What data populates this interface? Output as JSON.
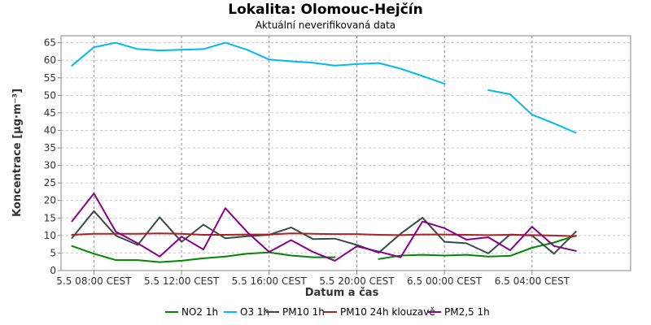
{
  "chart_data": {
    "type": "line",
    "title": "Lokalita: Olomouc-Hejčín",
    "subtitle": "Aktuální neverifikovaná data",
    "xlabel": "Datum a čas",
    "ylabel": "Koncentrace [µg·m⁻³]",
    "ylim": [
      0,
      67
    ],
    "yticks": [
      0,
      5,
      10,
      15,
      20,
      25,
      30,
      35,
      40,
      45,
      50,
      55,
      60,
      65
    ],
    "xlim": [
      -0.5,
      25.5
    ],
    "xticks": [
      {
        "pos": 1,
        "label": "5.5 08:00 CEST"
      },
      {
        "pos": 5,
        "label": "5.5 12:00 CEST"
      },
      {
        "pos": 9,
        "label": "5.5 16:00 CEST"
      },
      {
        "pos": 13,
        "label": "5.5 20:00 CEST"
      },
      {
        "pos": 17,
        "label": "6.5 00:00 CEST"
      },
      {
        "pos": 21,
        "label": "6.5 04:00 CEST"
      }
    ],
    "grid": true,
    "legend_position": "bottom",
    "x": [
      "5.5 07:00",
      "5.5 08:00",
      "5.5 09:00",
      "5.5 10:00",
      "5.5 11:00",
      "5.5 12:00",
      "5.5 13:00",
      "5.5 14:00",
      "5.5 15:00",
      "5.5 16:00",
      "5.5 17:00",
      "5.5 18:00",
      "5.5 19:00",
      "5.5 20:00",
      "5.5 21:00",
      "5.5 22:00",
      "5.5 23:00",
      "6.5 00:00",
      "6.5 01:00",
      "6.5 02:00",
      "6.5 03:00",
      "6.5 04:00",
      "6.5 05:00",
      "6.5 06:00"
    ],
    "series": [
      {
        "name": "NO2 1h",
        "color": "#008800",
        "values": [
          7,
          4.8,
          3,
          3,
          2.4,
          2.8,
          3.5,
          4,
          4.8,
          5.2,
          4.3,
          3.8,
          3.8,
          null,
          3.3,
          4.3,
          4.5,
          4.3,
          4.5,
          4,
          4.2,
          6.5,
          8,
          10
        ]
      },
      {
        "name": "O3 1h",
        "color": "#00bbee",
        "values": [
          58.5,
          63.7,
          65,
          63.2,
          62.8,
          63,
          63.2,
          65,
          63,
          60.2,
          59.7,
          59.3,
          58.5,
          58.9,
          59.2,
          57.6,
          55.5,
          53.3,
          null,
          51.5,
          50.3,
          44.5,
          42,
          39.3
        ]
      },
      {
        "name": "PM10 1h",
        "color": "#3a4a4a",
        "values": [
          9.3,
          17,
          10,
          7.3,
          15.2,
          8.2,
          13.1,
          9.2,
          9.8,
          10.2,
          12.3,
          9,
          9.1,
          7.3,
          5.1,
          10.5,
          15.1,
          8.2,
          7.8,
          4.9,
          10.3,
          10,
          4.8,
          11.1
        ]
      },
      {
        "name": "PM10 24h klouzavě",
        "color": "#aa2222",
        "values": [
          10.2,
          10.5,
          10.5,
          10.5,
          10.6,
          10.5,
          10.2,
          10.2,
          10.3,
          10.3,
          10.6,
          10.5,
          10.4,
          10.4,
          10.2,
          10.1,
          10.3,
          10.3,
          10.2,
          10.1,
          10.2,
          10.1,
          10,
          9.8
        ]
      },
      {
        "name": "PM2,5 1h",
        "color": "#880088",
        "values": [
          14.1,
          22,
          11.1,
          7.8,
          4,
          9.7,
          6,
          17.8,
          11,
          5.3,
          8.7,
          5.3,
          2.8,
          6.9,
          5.4,
          3.8,
          14,
          12.1,
          8.8,
          9.5,
          5.8,
          12.5,
          7,
          5.6
        ]
      }
    ]
  }
}
